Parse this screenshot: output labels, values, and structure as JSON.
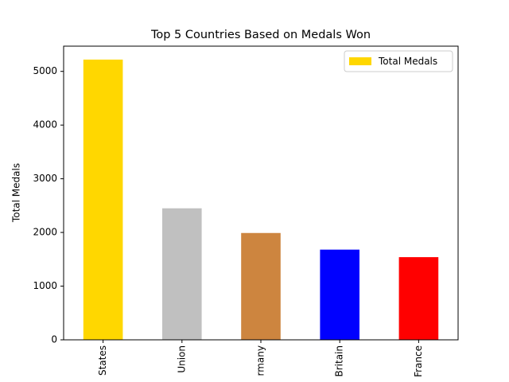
{
  "chart_data": {
    "type": "bar",
    "title": "Top 5 Countries Based on Medals Won",
    "y_label": "Total Medals",
    "categories": [
      "States",
      "Union",
      "rmany",
      "Britain",
      "France"
    ],
    "series": [
      {
        "name": "Total Medals",
        "color": "#ffd700",
        "colors": [
          "#ffd700",
          "#c0c0c0",
          "#cd853f",
          "#0000ff",
          "#ff0000"
        ],
        "values": [
          5220,
          2450,
          1990,
          1680,
          1540
        ]
      }
    ],
    "ylim": [
      0,
      5470
    ],
    "yticks": [
      0,
      1000,
      2000,
      3000,
      4000,
      5000
    ],
    "legend": "upper right",
    "grid": false
  }
}
